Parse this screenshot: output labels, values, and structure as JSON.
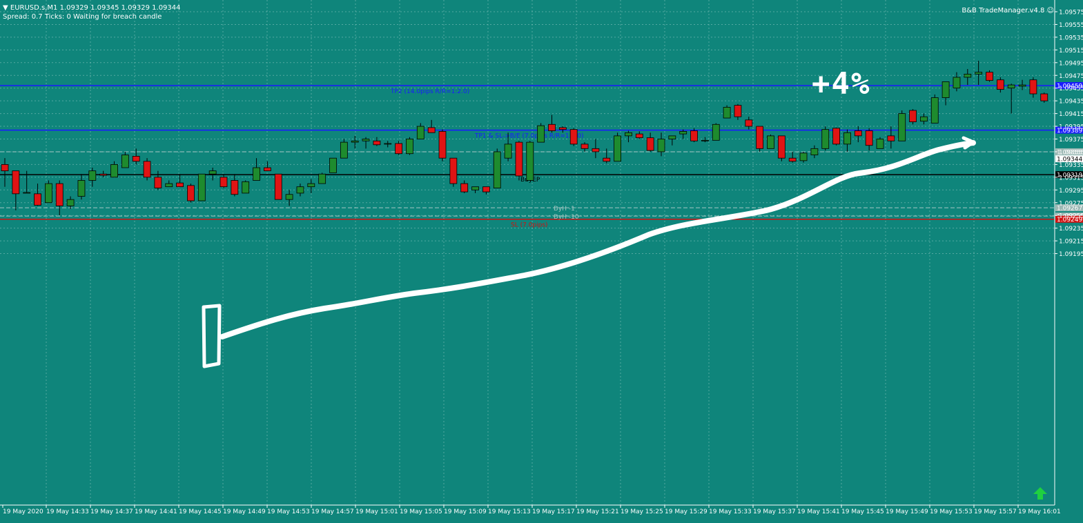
{
  "header": {
    "symbol_line": "EURUSD.s,M1  1.09329 1.09345 1.09329 1.09344",
    "status_line": "Spread: 0.7  Ticks: 0  Waiting for breach candle",
    "trade_manager": "B&B TradeManager.v4.8"
  },
  "annotation_text": "+4%",
  "colors": {
    "background": "#0f857b",
    "bull": "#1e8b2e",
    "bear": "#e01414",
    "tp_line": "#1a1aff",
    "entry_line": "#000000",
    "sl_line": "#d01010",
    "grid": "#8fc8c2"
  },
  "chart_data": {
    "type": "candlestick",
    "symbol": "EURUSD.s",
    "timeframe": "M1",
    "ylim": [
      1.0919,
      1.0958
    ],
    "y_ticks": [
      "1.09575",
      "1.09555",
      "1.09535",
      "1.09515",
      "1.09495",
      "1.09475",
      "1.09455",
      "1.09435",
      "1.09415",
      "1.09395",
      "1.09375",
      "1.09355",
      "1.09335",
      "1.09315",
      "1.09295",
      "1.09275",
      "1.09255",
      "1.09235",
      "1.09215",
      "1.09195"
    ],
    "x_labels": [
      "19 May 2020",
      "19 May 14:33",
      "19 May 14:37",
      "19 May 14:41",
      "19 May 14:45",
      "19 May 14:49",
      "19 May 14:53",
      "19 May 14:57",
      "19 May 15:01",
      "19 May 15:05",
      "19 May 15:09",
      "19 May 15:13",
      "19 May 15:17",
      "19 May 15:21",
      "19 May 15:25",
      "19 May 15:29",
      "19 May 15:33",
      "19 May 15:37",
      "19 May 15:41",
      "19 May 15:45",
      "19 May 15:49",
      "19 May 15:53",
      "19 May 15:57",
      "19 May 16:01"
    ],
    "candles": [
      [
        1.09335,
        1.09345,
        1.093,
        1.09325
      ],
      [
        1.09325,
        1.09325,
        1.09263,
        1.09289
      ],
      [
        1.0929,
        1.09325,
        1.0929,
        1.09291
      ],
      [
        1.09289,
        1.09305,
        1.0927,
        1.09271
      ],
      [
        1.09275,
        1.0931,
        1.09275,
        1.09305
      ],
      [
        1.09305,
        1.0931,
        1.09255,
        1.0927
      ],
      [
        1.0927,
        1.09285,
        1.09265,
        1.0928
      ],
      [
        1.09285,
        1.0932,
        1.0928,
        1.0931
      ],
      [
        1.0931,
        1.0933,
        1.093,
        1.09325
      ],
      [
        1.0932,
        1.09325,
        1.09315,
        1.09318
      ],
      [
        1.09315,
        1.0934,
        1.09315,
        1.09335
      ],
      [
        1.0933,
        1.09355,
        1.0933,
        1.0935
      ],
      [
        1.09348,
        1.0936,
        1.09335,
        1.0934
      ],
      [
        1.0934,
        1.09345,
        1.0931,
        1.09315
      ],
      [
        1.09315,
        1.09325,
        1.09295,
        1.09298
      ],
      [
        1.093,
        1.0931,
        1.093,
        1.09305
      ],
      [
        1.09306,
        1.0932,
        1.093,
        1.093
      ],
      [
        1.09302,
        1.09305,
        1.09275,
        1.09278
      ],
      [
        1.09278,
        1.0932,
        1.09278,
        1.0932
      ],
      [
        1.0932,
        1.0933,
        1.0931,
        1.09325
      ],
      [
        1.09315,
        1.0932,
        1.09298,
        1.093
      ],
      [
        1.0931,
        1.0932,
        1.09285,
        1.09288
      ],
      [
        1.0929,
        1.0931,
        1.0929,
        1.09308
      ],
      [
        1.0931,
        1.09345,
        1.0931,
        1.0933
      ],
      [
        1.0933,
        1.0934,
        1.09325,
        1.09325
      ],
      [
        1.0932,
        1.0932,
        1.0928,
        1.0928
      ],
      [
        1.0928,
        1.09295,
        1.0927,
        1.09288
      ],
      [
        1.0929,
        1.09305,
        1.09285,
        1.093
      ],
      [
        1.093,
        1.09312,
        1.0929,
        1.09305
      ],
      [
        1.09305,
        1.09322,
        1.09305,
        1.0932
      ],
      [
        1.09322,
        1.09345,
        1.09322,
        1.09345
      ],
      [
        1.09345,
        1.09375,
        1.09345,
        1.0937
      ],
      [
        1.0937,
        1.0938,
        1.0936,
        1.09372
      ],
      [
        1.09372,
        1.09378,
        1.0936,
        1.09375
      ],
      [
        1.09372,
        1.09378,
        1.09364,
        1.09366
      ],
      [
        1.09367,
        1.09372,
        1.09362,
        1.09368
      ],
      [
        1.09368,
        1.09372,
        1.0935,
        1.09352
      ],
      [
        1.09352,
        1.09378,
        1.0935,
        1.09375
      ],
      [
        1.09375,
        1.094,
        1.09375,
        1.09395
      ],
      [
        1.09393,
        1.09405,
        1.09385,
        1.09385
      ],
      [
        1.09387,
        1.0939,
        1.0934,
        1.09345
      ],
      [
        1.09345,
        1.09345,
        1.093,
        1.09305
      ],
      [
        1.09305,
        1.0931,
        1.0929,
        1.09292
      ],
      [
        1.09295,
        1.093,
        1.0929,
        1.093
      ],
      [
        1.093,
        1.093,
        1.09288,
        1.09292
      ],
      [
        1.09298,
        1.0936,
        1.09298,
        1.09355
      ],
      [
        1.09345,
        1.09385,
        1.0934,
        1.09367
      ],
      [
        1.0937,
        1.09372,
        1.0931,
        1.09317
      ],
      [
        1.0931,
        1.09372,
        1.0931,
        1.0937
      ],
      [
        1.0937,
        1.094,
        1.0937,
        1.09396
      ],
      [
        1.09398,
        1.09413,
        1.09385,
        1.09388
      ],
      [
        1.09393,
        1.09395,
        1.09385,
        1.0939
      ],
      [
        1.0939,
        1.09392,
        1.09364,
        1.09367
      ],
      [
        1.09367,
        1.0937,
        1.09355,
        1.0936
      ],
      [
        1.0936,
        1.09375,
        1.09345,
        1.09355
      ],
      [
        1.09345,
        1.0936,
        1.09337,
        1.0934
      ],
      [
        1.0934,
        1.09385,
        1.0934,
        1.0938
      ],
      [
        1.0938,
        1.09388,
        1.0937,
        1.09385
      ],
      [
        1.09383,
        1.09387,
        1.09375,
        1.09377
      ],
      [
        1.09377,
        1.09385,
        1.09355,
        1.09357
      ],
      [
        1.09355,
        1.09385,
        1.09348,
        1.09375
      ],
      [
        1.09375,
        1.0938,
        1.09365,
        1.0938
      ],
      [
        1.09383,
        1.0939,
        1.09375,
        1.09387
      ],
      [
        1.09388,
        1.09392,
        1.0937,
        1.09372
      ],
      [
        1.09372,
        1.09378,
        1.0937,
        1.09373
      ],
      [
        1.09373,
        1.094,
        1.09373,
        1.09398
      ],
      [
        1.09408,
        1.09428,
        1.09408,
        1.09425
      ],
      [
        1.09428,
        1.0943,
        1.09405,
        1.0941
      ],
      [
        1.09405,
        1.0941,
        1.0939,
        1.09395
      ],
      [
        1.09395,
        1.09395,
        1.09355,
        1.0936
      ],
      [
        1.0936,
        1.09382,
        1.0936,
        1.0938
      ],
      [
        1.0938,
        1.0938,
        1.0934,
        1.09345
      ],
      [
        1.09345,
        1.09355,
        1.09338,
        1.0934
      ],
      [
        1.09341,
        1.09355,
        1.09338,
        1.09353
      ],
      [
        1.0935,
        1.09365,
        1.09345,
        1.0936
      ],
      [
        1.0936,
        1.09395,
        1.09357,
        1.0939
      ],
      [
        1.09392,
        1.09393,
        1.09365,
        1.09367
      ],
      [
        1.09367,
        1.0939,
        1.09355,
        1.09385
      ],
      [
        1.09388,
        1.09395,
        1.0937,
        1.0938
      ],
      [
        1.09388,
        1.09392,
        1.09357,
        1.09365
      ],
      [
        1.0936,
        1.09378,
        1.0936,
        1.09375
      ],
      [
        1.0938,
        1.09395,
        1.0936,
        1.09372
      ],
      [
        1.09372,
        1.0942,
        1.09372,
        1.09415
      ],
      [
        1.0942,
        1.09422,
        1.09398,
        1.09402
      ],
      [
        1.09403,
        1.09415,
        1.09398,
        1.0941
      ],
      [
        1.094,
        1.09445,
        1.094,
        1.0944
      ],
      [
        1.0944,
        1.09465,
        1.09428,
        1.09465
      ],
      [
        1.09455,
        1.0948,
        1.0945,
        1.09472
      ],
      [
        1.09472,
        1.09485,
        1.0946,
        1.09477
      ],
      [
        1.09477,
        1.09498,
        1.0946,
        1.0948
      ],
      [
        1.0948,
        1.09483,
        1.09465,
        1.09467
      ],
      [
        1.09468,
        1.09472,
        1.09448,
        1.09453
      ],
      [
        1.09455,
        1.09462,
        1.09415,
        1.0946
      ],
      [
        1.09458,
        1.09468,
        1.09452,
        1.0946
      ],
      [
        1.09468,
        1.09472,
        1.0944,
        1.09446
      ],
      [
        1.09446,
        1.09448,
        1.09432,
        1.09435
      ]
    ],
    "hlines": [
      {
        "price": 1.09459,
        "label": "TP2 (14.0pips R/R=1:2.0)",
        "tag": "1.09459",
        "kind": "tp"
      },
      {
        "price": 1.09389,
        "label": "TP1 & SL->B/E (7.0pips R/R=1:1.0)",
        "tag": "1.09389",
        "kind": "tp"
      },
      {
        "price": 1.09319,
        "label": "BuyEP",
        "tag": "1.09319",
        "kind": "entry"
      },
      {
        "price": 1.09249,
        "label": "SL (7.0pips)",
        "tag": "1.09249",
        "kind": "sl"
      }
    ],
    "dashed_levels": [
      {
        "price": 1.09267,
        "label": "DyH -1",
        "tag": "1.09267"
      },
      {
        "price": 1.09254,
        "label": "DyH -10",
        "tag": "1.09254"
      },
      {
        "price": 1.09355,
        "label": "",
        "tag": "1.09355"
      }
    ],
    "current_price": "1.09344",
    "grid": true
  }
}
